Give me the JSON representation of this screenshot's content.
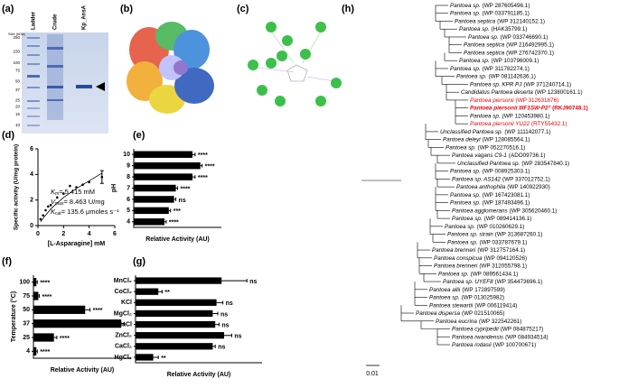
{
  "panels": [
    "(a)",
    "(b)",
    "(c)",
    "(d)",
    "(e)",
    "(f)",
    "(g)",
    "(h)"
  ],
  "gel": {
    "lanes": [
      "Ladder",
      "Crude",
      "Kp_AnsA"
    ],
    "size_title": "Size (kDa)",
    "sizes": [
      250,
      150,
      100,
      75,
      50,
      37,
      25,
      20,
      15,
      10
    ]
  },
  "chart_data": [
    {
      "type": "scatter",
      "xlabel": "[L-Asparagine] mM",
      "ylabel": "Specific activity (U/mg protein)",
      "x": [
        0.2,
        0.4,
        0.6,
        0.8,
        1,
        1.5,
        2,
        2.5,
        3,
        3.5,
        4,
        5
      ],
      "values": [
        0.5,
        0.8,
        1.2,
        1.5,
        1.6,
        2.2,
        2.5,
        3.1,
        3.0,
        3.2,
        3.4,
        3.8
      ],
      "errors": [
        null,
        null,
        null,
        null,
        null,
        null,
        null,
        null,
        null,
        null,
        null,
        0.5
      ],
      "curve": {
        "x": [
          0.2,
          0.5,
          1,
          2,
          3,
          4,
          5
        ],
        "y": [
          0.3,
          0.7,
          1.3,
          2.2,
          2.9,
          3.5,
          4.1
        ]
      },
      "xlim": [
        0,
        6
      ],
      "xticks": [
        0,
        2,
        4,
        6
      ],
      "ylim": [
        0,
        6
      ],
      "yticks": [
        0,
        2,
        4,
        6
      ],
      "color": "#000000",
      "annotations": [
        {
          "symbol": "K",
          "sub": "m",
          "text": "= 5.415 mM"
        },
        {
          "symbol": "V",
          "sub": "max",
          "text": "= 8.463 U/mg"
        },
        {
          "symbol": "K",
          "sub": "cat",
          "text": "= 135.6 µmoles s⁻¹"
        }
      ]
    },
    {
      "type": "bar",
      "ylabel": "pH",
      "xlabel": "Relative Activity (AU)",
      "categories": [
        "10",
        "9",
        "8",
        "7",
        "6",
        "5",
        "4"
      ],
      "values": [
        0.67,
        0.76,
        0.67,
        0.48,
        0.46,
        0.4,
        0.35
      ],
      "errors": [
        0.03,
        0.02,
        0.03,
        0.02,
        0.02,
        0.02,
        0.02
      ],
      "annotations": [
        "****",
        "****",
        "****",
        "****",
        "ns",
        "***",
        "****"
      ],
      "xlim": [
        0,
        1
      ],
      "color": "#000000"
    },
    {
      "type": "bar",
      "ylabel": "Temperature (°C)",
      "xlabel": "Relative Activity (AU)",
      "categories": [
        "100",
        "75",
        "50",
        "37",
        "25",
        "4"
      ],
      "values": [
        0.03,
        0.05,
        0.53,
        0.9,
        0.21,
        0.03
      ],
      "errors": [
        0.01,
        0.01,
        0.05,
        0.03,
        0.03,
        0.01
      ],
      "annotations": [
        "****",
        "****",
        "****",
        null,
        "****",
        "****"
      ],
      "xlim": [
        0,
        1
      ],
      "color": "#000000"
    },
    {
      "type": "bar",
      "xlabel": "Relative Activity (AU)",
      "categories": [
        "MnCl₂",
        "CoCl₂",
        "KCl",
        "MgCl₂",
        "NaCl",
        "ZnCl₂",
        "CaCl₂",
        "HgCl₂"
      ],
      "values": [
        0.68,
        0.18,
        0.64,
        0.61,
        0.63,
        0.7,
        0.61,
        0.14
      ],
      "errors": [
        0.2,
        0.03,
        0.05,
        0.04,
        0.03,
        0.06,
        0.02,
        0.04
      ],
      "annotations": [
        "ns",
        "**",
        "ns",
        "ns",
        "ns",
        "ns",
        "ns",
        "**"
      ],
      "xlim": [
        0,
        1
      ],
      "color": "#000000"
    }
  ],
  "tree": {
    "scale": "0.01",
    "leaves": [
      {
        "name": "Pantoea sp.",
        "acc": "(WP 287605496.1)"
      },
      {
        "name": "Pantoea sp.",
        "acc": "(WP 033791185.1)"
      },
      {
        "name": "Pantoea septica",
        "acc": "(WP 312140152.1)"
      },
      {
        "name": "Pantoea sp.",
        "acc": "(HAK35799.1)"
      },
      {
        "name": "Pantoea sp.",
        "acc": "(WP 033746690.1)"
      },
      {
        "name": "Pantoea septica",
        "acc": "(WP 216492995.1)"
      },
      {
        "name": "Pantoea septica",
        "acc": "(WP 276742370.1)"
      },
      {
        "name": "Pantoea sp.",
        "acc": "(WP 103796009.1)"
      },
      {
        "name": "Pantoea sp.",
        "acc": "(WP 311782274.1)"
      },
      {
        "name": "Pantoea sp.",
        "acc": "(WP 081142636.1)"
      },
      {
        "name": "Pantoea sp. KPR PJ",
        "acc": "(WP 371240714.1)"
      },
      {
        "name": "Candidatus Pantoea deserta",
        "acc": "(WP 123800161.1)"
      },
      {
        "name": "Pantoea piersonii",
        "acc": "(WP 312631876)",
        "color": "#e8000b"
      },
      {
        "name": "Pantoea piersonii IIIF1SW-P2ᵀ",
        "acc": "(RKJ90748.1)",
        "color": "#e8000b",
        "bold": true
      },
      {
        "name": "Pantoea sp.",
        "acc": "(WP 120453980.1)"
      },
      {
        "name": "Pantoea piersonii YU22",
        "acc": "(RTY55432.1)",
        "color": "#e8000b"
      },
      {
        "name": "Unclassified Pantoea sp.",
        "acc": "(WP 111142077.1)"
      },
      {
        "name": "Pantoea deleyi",
        "acc": "(WP 128085564.1)"
      },
      {
        "name": "Pantoea sp.",
        "acc": "(WP 052270516.1)"
      },
      {
        "name": "Pantoea vagans C9-1",
        "acc": "(ADO09736.1)"
      },
      {
        "name": "Unclassified Pantoea sp.",
        "acc": "(WP 283547840.1)"
      },
      {
        "name": "Pantoea sp.",
        "acc": "(WP 008925303.1)"
      },
      {
        "name": "Pantoea sp. AS142",
        "acc": "(WP 337012752.1)"
      },
      {
        "name": "Pantoea anthophila",
        "acc": "(WP 140922930)"
      },
      {
        "name": "Pantoea sp.",
        "acc": "(WP 167423081.1)"
      },
      {
        "name": "Pantoea sp.",
        "acc": "(WP 187493496.1)"
      },
      {
        "name": "Pantoea agglomerans",
        "acc": "(WP 305620460.1)"
      },
      {
        "name": "Pantoea sp.",
        "acc": "(WP 089414136.1)"
      },
      {
        "name": "Pantoea sp.",
        "acc": "(WP 010260629.1)"
      },
      {
        "name": "Pantoea sp. strain",
        "acc": "(WP 313687260.1)"
      },
      {
        "name": "Pantoea sp.",
        "acc": "(WP 033787679.1)"
      },
      {
        "name": "Pantoea brenneri",
        "acc": "(WP 312757164.1)"
      },
      {
        "name": "Pantoea conspicua",
        "acc": "(WP 094120526)"
      },
      {
        "name": "Pantoea brenneri",
        "acc": "(WP 312055798.1)"
      },
      {
        "name": "Pantoea sp.",
        "acc": "(WP 089561434.1)"
      },
      {
        "name": "Pantoea sp. UYEF8",
        "acc": "(WP 354473696.1)"
      },
      {
        "name": "Pantoea allii",
        "acc": "(WP 172897599)"
      },
      {
        "name": "Pantoea sp.",
        "acc": "(WP 013025982)"
      },
      {
        "name": "Pantoea stewartii",
        "acc": "(WP 006119414)"
      },
      {
        "name": "Pantoea dispersa",
        "acc": "(WP 021510065)"
      },
      {
        "name": "Pantoea eucrina",
        "acc": "(WP 322542261)"
      },
      {
        "name": "Pantoea cypripedii",
        "acc": "(WP 084875217)"
      },
      {
        "name": "Pantoea rwandensis",
        "acc": "(WP 084934514)"
      },
      {
        "name": "Pantoea rodasii",
        "acc": "(WP 100700671)"
      }
    ]
  }
}
